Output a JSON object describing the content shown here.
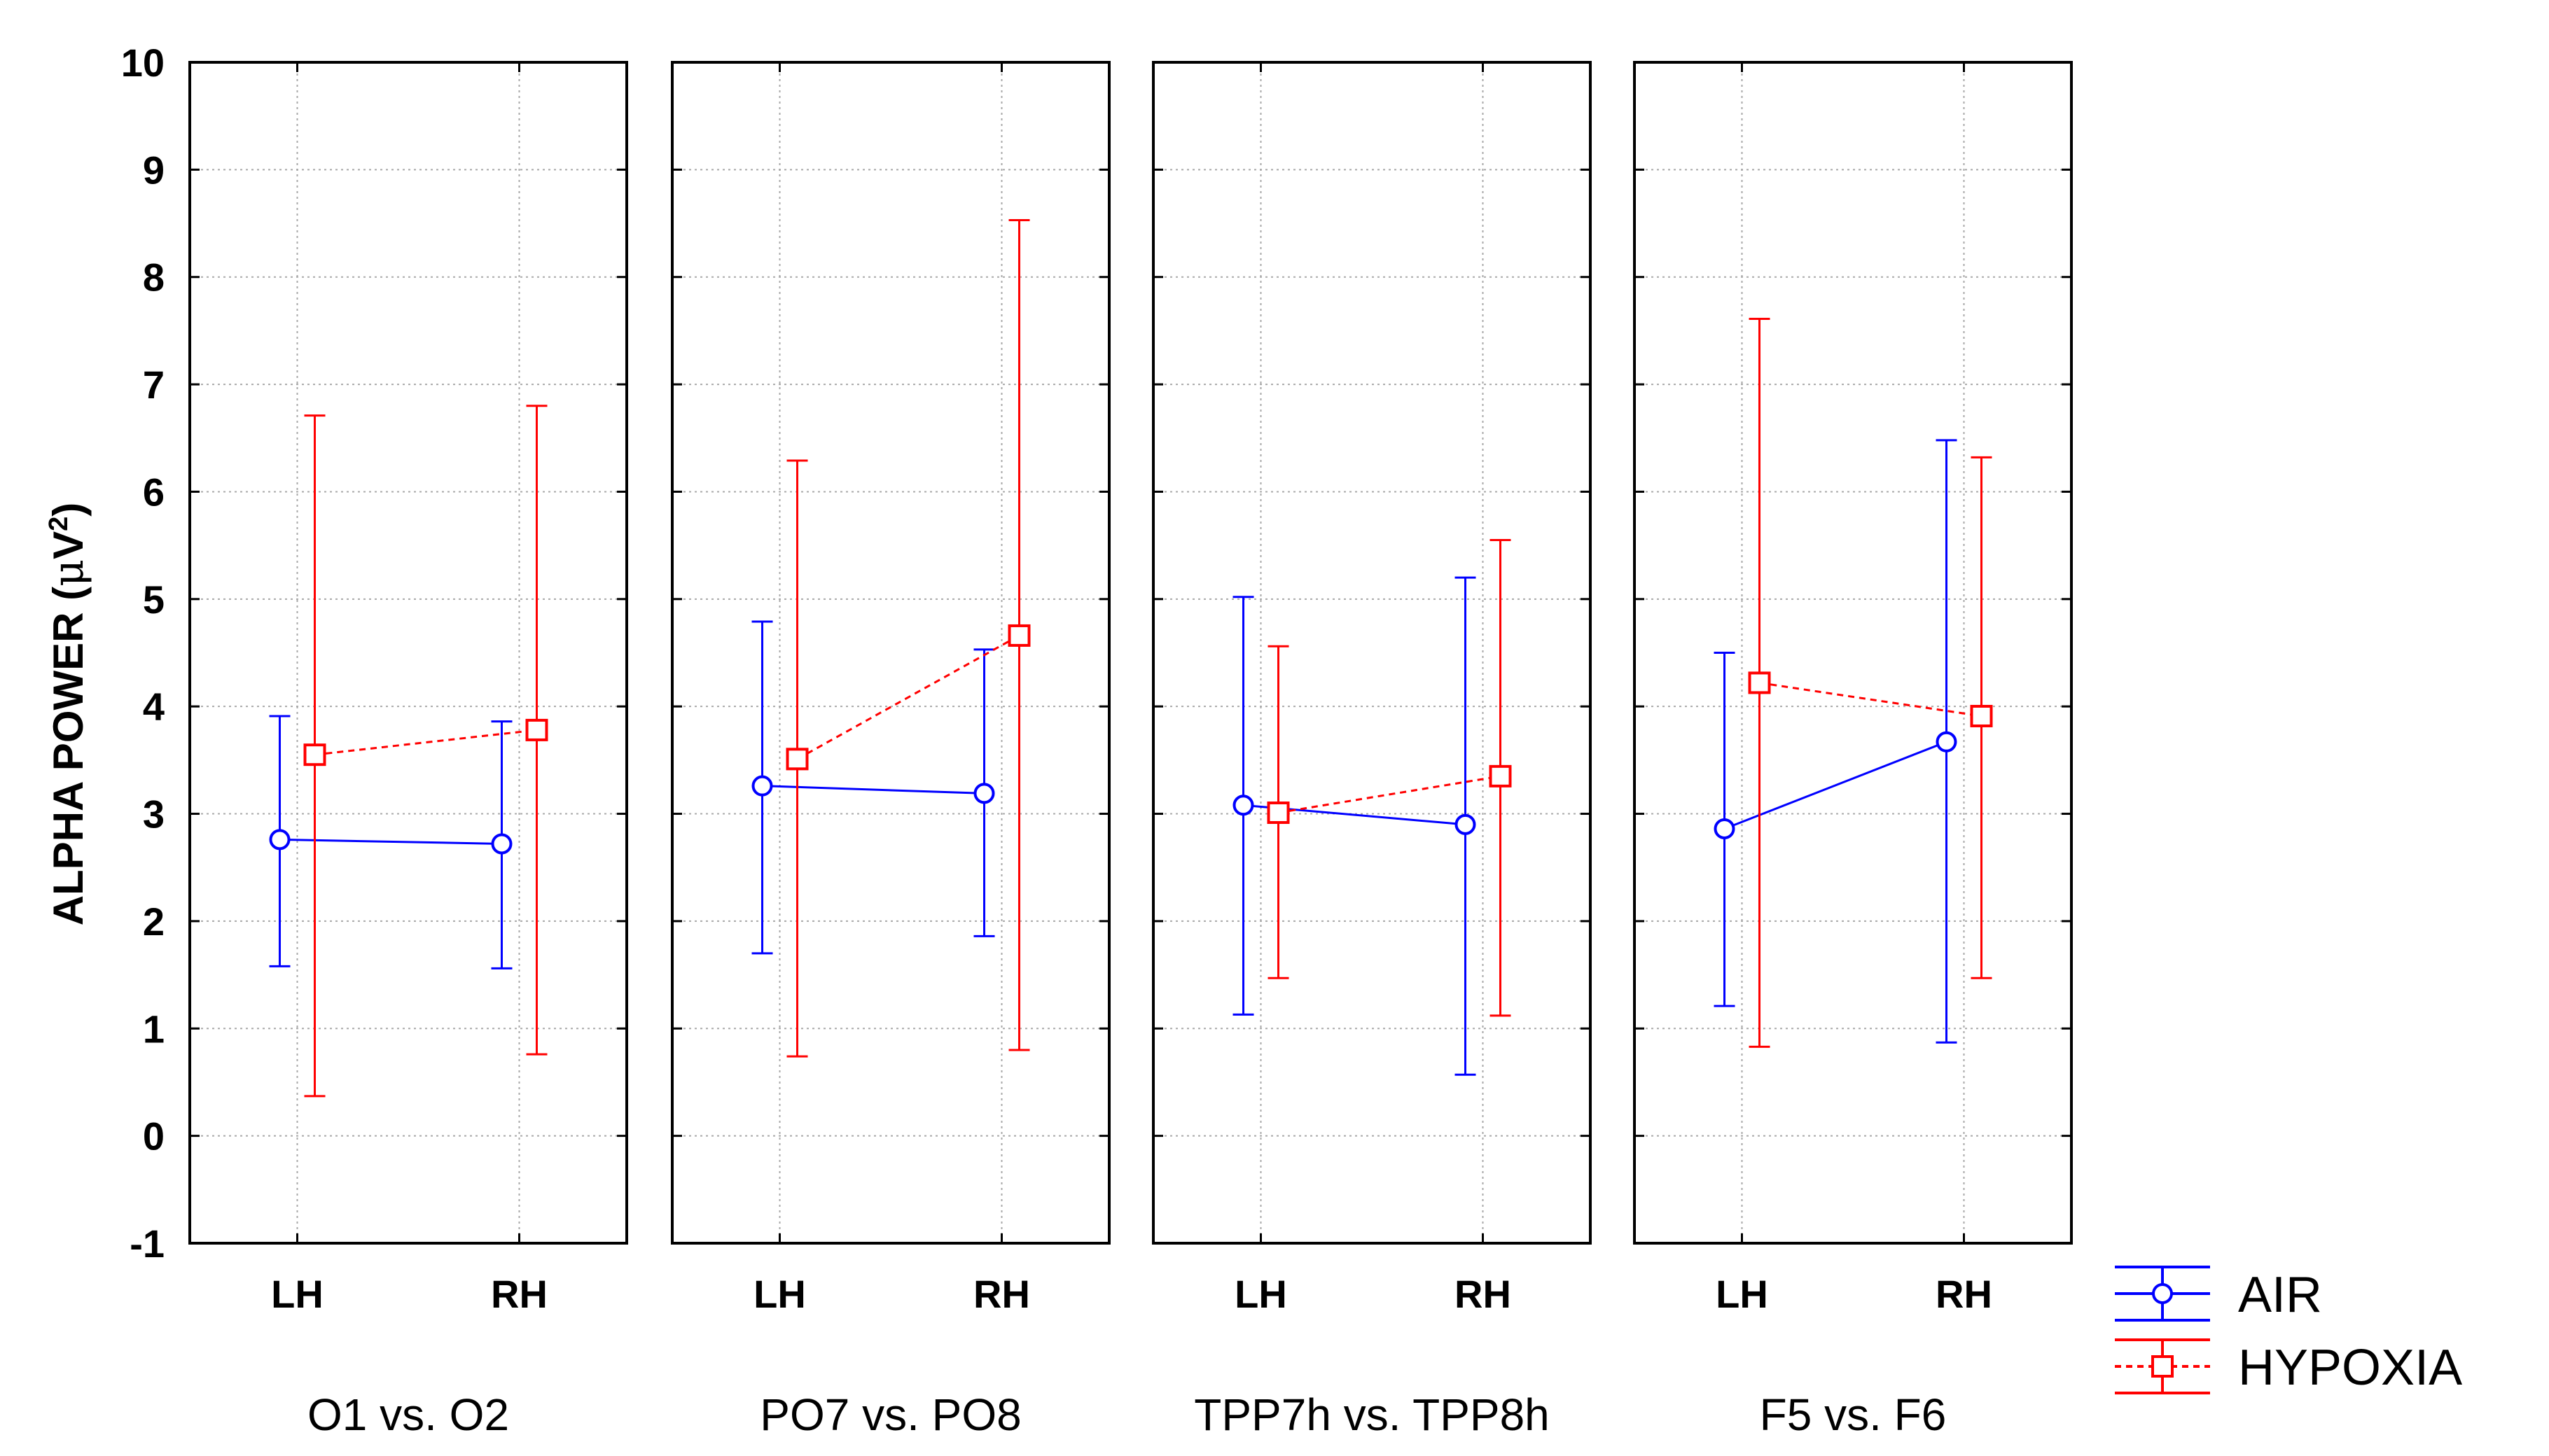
{
  "chart_data": {
    "type": "line",
    "title": "",
    "ylabel": "ALPHA POWER (μV²)",
    "ylabel_parts": {
      "main": "ALPHA POWER (",
      "mu": "μ",
      "unit": "V",
      "sup": "2",
      "close": ")"
    },
    "ylim": [
      -1,
      10
    ],
    "yticks": [
      "-1",
      "0",
      "1",
      "2",
      "3",
      "4",
      "5",
      "6",
      "7",
      "8",
      "9",
      "10"
    ],
    "grid": true,
    "legend_position": "bottom-right",
    "categories": [
      "LH",
      "RH"
    ],
    "panels": [
      {
        "label": "O1 vs. O2",
        "series": [
          {
            "name": "AIR",
            "values": [
              2.76,
              2.72
            ],
            "lower": [
              1.58,
              1.56
            ],
            "upper": [
              3.91,
              3.86
            ]
          },
          {
            "name": "HYPOXIA",
            "values": [
              3.55,
              3.78
            ],
            "lower": [
              0.37,
              0.76
            ],
            "upper": [
              6.71,
              6.8
            ]
          }
        ]
      },
      {
        "label": "PO7 vs. PO8",
        "series": [
          {
            "name": "AIR",
            "values": [
              3.26,
              3.19
            ],
            "lower": [
              1.7,
              1.86
            ],
            "upper": [
              4.79,
              4.53
            ]
          },
          {
            "name": "HYPOXIA",
            "values": [
              3.51,
              4.66
            ],
            "lower": [
              0.74,
              0.8
            ],
            "upper": [
              6.29,
              8.53
            ]
          }
        ]
      },
      {
        "label": "TPP7h vs. TPP8h",
        "series": [
          {
            "name": "AIR",
            "values": [
              3.08,
              2.9
            ],
            "lower": [
              1.13,
              0.57
            ],
            "upper": [
              5.02,
              5.2
            ]
          },
          {
            "name": "HYPOXIA",
            "values": [
              3.01,
              3.35
            ],
            "lower": [
              1.47,
              1.12
            ],
            "upper": [
              4.56,
              5.55
            ]
          }
        ]
      },
      {
        "label": "F5 vs. F6",
        "series": [
          {
            "name": "AIR",
            "values": [
              2.86,
              3.67
            ],
            "lower": [
              1.21,
              0.87
            ],
            "upper": [
              4.5,
              6.48
            ]
          },
          {
            "name": "HYPOXIA",
            "values": [
              4.22,
              3.91
            ],
            "lower": [
              0.83,
              1.47
            ],
            "upper": [
              7.61,
              6.32
            ]
          }
        ]
      }
    ],
    "legend": [
      {
        "name": "AIR",
        "color": "#0000ff",
        "marker": "circle",
        "line": "solid"
      },
      {
        "name": "HYPOXIA",
        "color": "#ff0000",
        "marker": "square",
        "line": "dashed"
      }
    ]
  }
}
